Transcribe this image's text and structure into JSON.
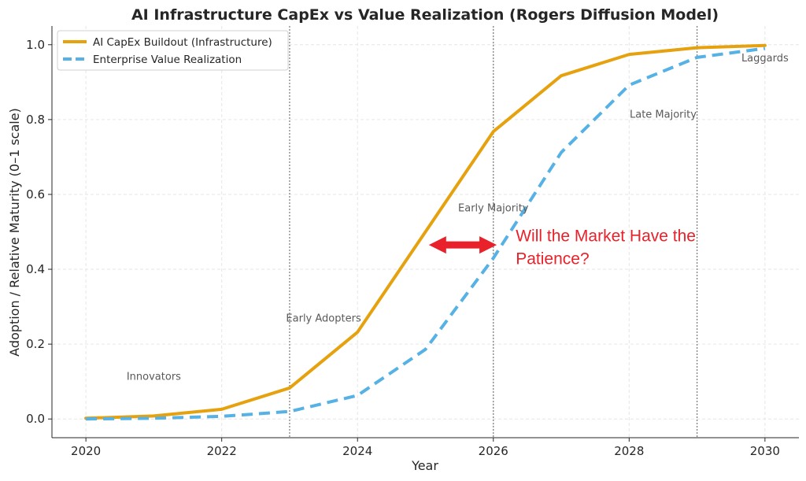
{
  "chart_data": {
    "type": "line",
    "title": "AI Infrastructure CapEx vs Value Realization (Rogers Diffusion Model)",
    "xlabel": "Year",
    "ylabel": "Adoption / Relative Maturity (0–1 scale)",
    "xlim": [
      2019.5,
      2030.5
    ],
    "ylim": [
      -0.05,
      1.05
    ],
    "x_ticks": [
      2020,
      2022,
      2024,
      2026,
      2028,
      2030
    ],
    "y_ticks": [
      0.0,
      0.2,
      0.4,
      0.6,
      0.8,
      1.0
    ],
    "grid": true,
    "legend_position": "top-left",
    "x": [
      2020,
      2021,
      2022,
      2023,
      2024,
      2025,
      2026,
      2027,
      2028,
      2029,
      2030
    ],
    "series": [
      {
        "name": "AI CapEx Buildout (Infrastructure)",
        "color": "#e6a10e",
        "style": "solid",
        "values": [
          0.002,
          0.008,
          0.026,
          0.083,
          0.232,
          0.5,
          0.768,
          0.917,
          0.974,
          0.992,
          0.998
        ]
      },
      {
        "name": "Enterprise Value Realization",
        "color": "#56b1e5",
        "style": "dashed",
        "values": [
          0.0,
          0.002,
          0.007,
          0.02,
          0.063,
          0.186,
          0.43,
          0.712,
          0.892,
          0.966,
          0.99
        ]
      }
    ],
    "phase_lines": [
      2023,
      2026,
      2029
    ],
    "phase_labels": [
      {
        "text": "Innovators",
        "x": 2021.0,
        "y": 0.105
      },
      {
        "text": "Early Adopters",
        "x": 2023.5,
        "y": 0.26
      },
      {
        "text": "Early Majority",
        "x": 2026.0,
        "y": 0.555
      },
      {
        "text": "Late Majority",
        "x": 2028.5,
        "y": 0.805
      },
      {
        "text": "Laggards",
        "x": 2030.0,
        "y": 0.955
      }
    ],
    "annotation": {
      "lines": [
        "Will the Market Have the",
        "Patience?"
      ],
      "color": "#e8212a",
      "arrow_x_range": [
        2025.05,
        2026.05
      ],
      "arrow_y": 0.465,
      "text_x": 2026.33,
      "text_y": 0.475
    }
  }
}
